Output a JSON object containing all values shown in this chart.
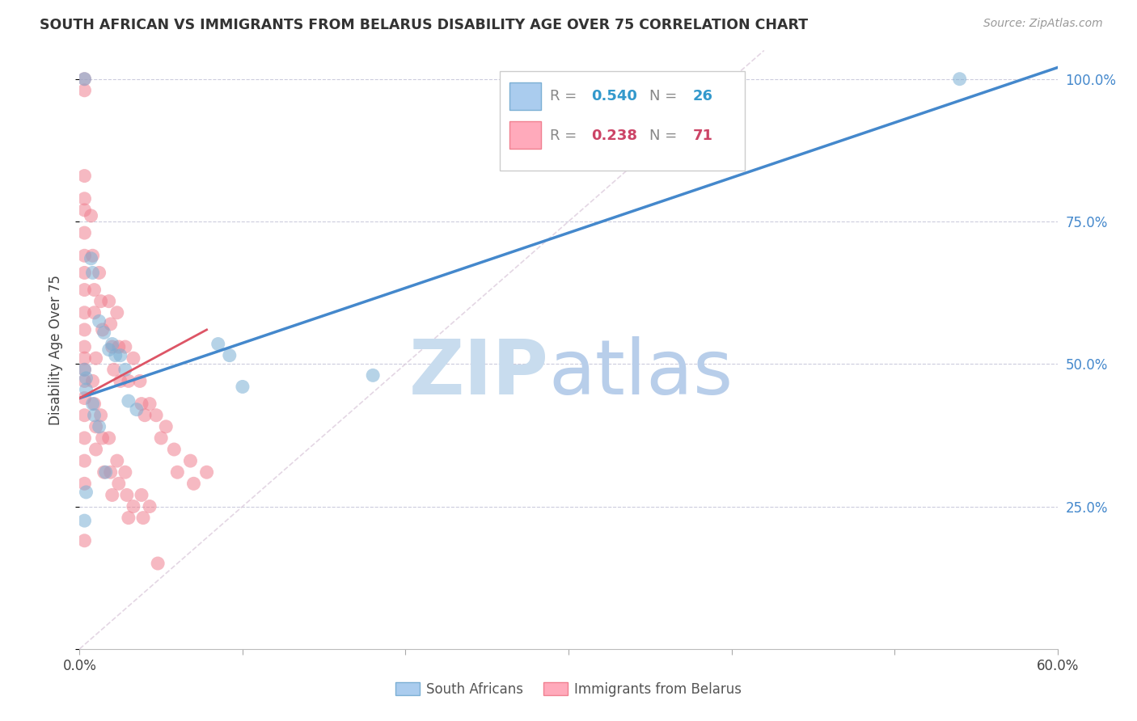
{
  "title": "SOUTH AFRICAN VS IMMIGRANTS FROM BELARUS DISABILITY AGE OVER 75 CORRELATION CHART",
  "source": "Source: ZipAtlas.com",
  "ylabel": "Disability Age Over 75",
  "xlim": [
    0.0,
    0.6
  ],
  "ylim": [
    0.0,
    1.05
  ],
  "legend_blue_R": "0.540",
  "legend_blue_N": "26",
  "legend_pink_R": "0.238",
  "legend_pink_N": "71",
  "blue_scatter_color": "#7BAFD4",
  "pink_scatter_color": "#F08090",
  "blue_line_color": "#4488CC",
  "pink_line_color": "#DD5566",
  "diag_color": "#DDCCDD",
  "right_axis_color": "#4488CC",
  "watermark_zip_color": "#C8DCEE",
  "watermark_atlas_color": "#B8CEEA",
  "south_african_x": [
    0.003,
    0.007,
    0.008,
    0.012,
    0.015,
    0.018,
    0.02,
    0.022,
    0.025,
    0.028,
    0.03,
    0.035,
    0.003,
    0.004,
    0.004,
    0.008,
    0.009,
    0.012,
    0.016,
    0.085,
    0.092,
    0.1,
    0.18,
    0.54,
    0.003,
    0.004
  ],
  "south_african_y": [
    1.0,
    0.685,
    0.66,
    0.575,
    0.555,
    0.525,
    0.535,
    0.515,
    0.515,
    0.49,
    0.435,
    0.42,
    0.49,
    0.475,
    0.455,
    0.43,
    0.41,
    0.39,
    0.31,
    0.535,
    0.515,
    0.46,
    0.48,
    1.0,
    0.225,
    0.275
  ],
  "belarus_x": [
    0.003,
    0.003,
    0.003,
    0.003,
    0.003,
    0.003,
    0.003,
    0.003,
    0.003,
    0.003,
    0.003,
    0.003,
    0.003,
    0.003,
    0.007,
    0.008,
    0.009,
    0.009,
    0.01,
    0.012,
    0.013,
    0.014,
    0.018,
    0.019,
    0.02,
    0.021,
    0.023,
    0.024,
    0.025,
    0.028,
    0.03,
    0.033,
    0.037,
    0.038,
    0.04,
    0.043,
    0.047,
    0.05,
    0.053,
    0.058,
    0.06,
    0.068,
    0.07,
    0.078,
    0.003,
    0.003,
    0.003,
    0.003,
    0.003,
    0.003,
    0.003,
    0.008,
    0.009,
    0.01,
    0.01,
    0.013,
    0.014,
    0.015,
    0.018,
    0.019,
    0.02,
    0.023,
    0.024,
    0.028,
    0.029,
    0.03,
    0.033,
    0.038,
    0.039,
    0.043,
    0.048
  ],
  "belarus_y": [
    1.0,
    0.98,
    0.83,
    0.79,
    0.77,
    0.73,
    0.69,
    0.66,
    0.63,
    0.59,
    0.56,
    0.53,
    0.51,
    0.49,
    0.76,
    0.69,
    0.63,
    0.59,
    0.51,
    0.66,
    0.61,
    0.56,
    0.61,
    0.57,
    0.53,
    0.49,
    0.59,
    0.53,
    0.47,
    0.53,
    0.47,
    0.51,
    0.47,
    0.43,
    0.41,
    0.43,
    0.41,
    0.37,
    0.39,
    0.35,
    0.31,
    0.33,
    0.29,
    0.31,
    0.47,
    0.44,
    0.41,
    0.37,
    0.33,
    0.29,
    0.19,
    0.47,
    0.43,
    0.39,
    0.35,
    0.41,
    0.37,
    0.31,
    0.37,
    0.31,
    0.27,
    0.33,
    0.29,
    0.31,
    0.27,
    0.23,
    0.25,
    0.27,
    0.23,
    0.25,
    0.15
  ],
  "blue_line_x0": 0.0,
  "blue_line_y0": 0.44,
  "blue_line_x1": 0.6,
  "blue_line_y1": 1.02,
  "pink_line_x0": 0.0,
  "pink_line_y0": 0.44,
  "pink_line_x1": 0.078,
  "pink_line_y1": 0.56
}
